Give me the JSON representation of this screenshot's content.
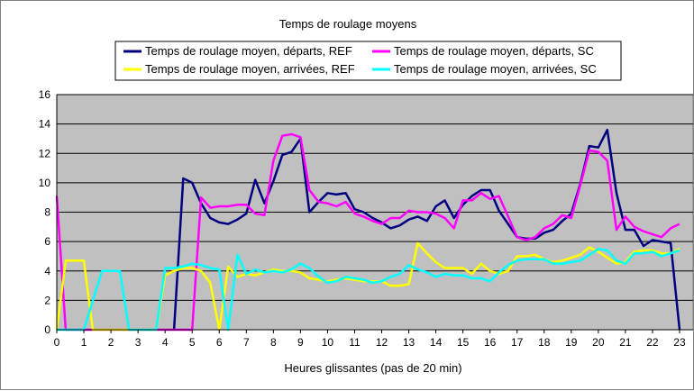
{
  "chart_data": {
    "type": "line",
    "title": "Temps de roulage moyens",
    "xlabel": "Heures glissantes (pas de 20 min)",
    "ylabel": "",
    "xlim": [
      0,
      23.5
    ],
    "ylim": [
      0,
      16
    ],
    "x_ticks": [
      0,
      1,
      2,
      3,
      4,
      5,
      6,
      7,
      8,
      9,
      10,
      11,
      12,
      13,
      14,
      15,
      16,
      17,
      18,
      19,
      20,
      21,
      22,
      23
    ],
    "y_ticks": [
      0,
      2,
      4,
      6,
      8,
      10,
      12,
      14,
      16
    ],
    "grid": "horizontal",
    "legend_position": "top",
    "plot_background": "#c0c0c0",
    "series": [
      {
        "name": "Temps de roulage moyen, départs, REF",
        "color": "#000080",
        "points": [
          [
            4.33,
            0
          ],
          [
            4.67,
            10.3
          ],
          [
            5.0,
            10.0
          ],
          [
            5.33,
            8.6
          ],
          [
            5.67,
            7.6
          ],
          [
            6.0,
            7.3
          ],
          [
            6.33,
            7.2
          ],
          [
            6.67,
            7.5
          ],
          [
            7.0,
            7.9
          ],
          [
            7.33,
            10.2
          ],
          [
            7.67,
            8.6
          ],
          [
            8.0,
            10.1
          ],
          [
            8.33,
            11.9
          ],
          [
            8.67,
            12.1
          ],
          [
            9.0,
            13.0
          ],
          [
            9.33,
            8.0
          ],
          [
            9.67,
            8.7
          ],
          [
            10.0,
            9.3
          ],
          [
            10.33,
            9.2
          ],
          [
            10.67,
            9.3
          ],
          [
            11.0,
            8.2
          ],
          [
            11.33,
            8.0
          ],
          [
            11.67,
            7.6
          ],
          [
            12.0,
            7.3
          ],
          [
            12.33,
            6.9
          ],
          [
            12.67,
            7.1
          ],
          [
            13.0,
            7.5
          ],
          [
            13.33,
            7.7
          ],
          [
            13.67,
            7.4
          ],
          [
            14.0,
            8.4
          ],
          [
            14.33,
            8.8
          ],
          [
            14.67,
            7.6
          ],
          [
            15.0,
            8.5
          ],
          [
            15.33,
            9.1
          ],
          [
            15.67,
            9.5
          ],
          [
            16.0,
            9.5
          ],
          [
            16.33,
            8.1
          ],
          [
            16.67,
            7.2
          ],
          [
            17.0,
            6.3
          ],
          [
            17.33,
            6.2
          ],
          [
            17.67,
            6.2
          ],
          [
            18.0,
            6.6
          ],
          [
            18.33,
            6.8
          ],
          [
            18.67,
            7.4
          ],
          [
            19.0,
            7.9
          ],
          [
            19.33,
            9.9
          ],
          [
            19.67,
            12.5
          ],
          [
            20.0,
            12.4
          ],
          [
            20.33,
            13.6
          ],
          [
            20.67,
            9.3
          ],
          [
            21.0,
            6.8
          ],
          [
            21.33,
            6.8
          ],
          [
            21.67,
            5.7
          ],
          [
            22.0,
            6.1
          ],
          [
            22.33,
            6.0
          ],
          [
            22.67,
            5.9
          ],
          [
            23.0,
            0
          ]
        ]
      },
      {
        "name": "Temps de roulage moyen, départs, SC",
        "color": "#ff00ff",
        "points": [
          [
            0.0,
            9.1
          ],
          [
            0.33,
            0
          ],
          [
            1.0,
            0
          ],
          [
            2.0,
            0
          ],
          [
            3.0,
            0
          ],
          [
            4.0,
            0
          ],
          [
            5.0,
            0
          ],
          [
            5.33,
            9.0
          ],
          [
            5.67,
            8.3
          ],
          [
            6.0,
            8.4
          ],
          [
            6.33,
            8.4
          ],
          [
            6.67,
            8.5
          ],
          [
            7.0,
            8.5
          ],
          [
            7.33,
            7.9
          ],
          [
            7.67,
            7.8
          ],
          [
            8.0,
            11.5
          ],
          [
            8.33,
            13.2
          ],
          [
            8.67,
            13.3
          ],
          [
            9.0,
            13.1
          ],
          [
            9.33,
            9.5
          ],
          [
            9.67,
            8.7
          ],
          [
            10.0,
            8.6
          ],
          [
            10.33,
            8.4
          ],
          [
            10.67,
            8.7
          ],
          [
            11.0,
            7.9
          ],
          [
            11.33,
            7.7
          ],
          [
            11.67,
            7.4
          ],
          [
            12.0,
            7.2
          ],
          [
            12.33,
            7.6
          ],
          [
            12.67,
            7.6
          ],
          [
            13.0,
            8.1
          ],
          [
            13.33,
            8.0
          ],
          [
            13.67,
            8.0
          ],
          [
            14.0,
            7.9
          ],
          [
            14.33,
            7.6
          ],
          [
            14.67,
            6.9
          ],
          [
            15.0,
            8.8
          ],
          [
            15.33,
            8.8
          ],
          [
            15.67,
            9.3
          ],
          [
            16.0,
            8.9
          ],
          [
            16.33,
            9.1
          ],
          [
            16.67,
            7.7
          ],
          [
            17.0,
            6.3
          ],
          [
            17.33,
            6.1
          ],
          [
            17.67,
            6.3
          ],
          [
            18.0,
            6.9
          ],
          [
            18.33,
            7.2
          ],
          [
            18.67,
            7.8
          ],
          [
            19.0,
            7.6
          ],
          [
            19.33,
            9.8
          ],
          [
            19.67,
            12.2
          ],
          [
            20.0,
            12.1
          ],
          [
            20.33,
            11.5
          ],
          [
            20.67,
            6.8
          ],
          [
            21.0,
            7.7
          ],
          [
            21.33,
            7.0
          ],
          [
            21.67,
            6.7
          ],
          [
            22.0,
            6.5
          ],
          [
            22.33,
            6.3
          ],
          [
            22.67,
            6.9
          ],
          [
            23.0,
            7.2
          ]
        ]
      },
      {
        "name": "Temps de roulage moyen, arrivées, REF",
        "color": "#ffff00",
        "points": [
          [
            0.0,
            0
          ],
          [
            0.33,
            4.7
          ],
          [
            0.67,
            4.7
          ],
          [
            1.0,
            4.7
          ],
          [
            1.33,
            0
          ],
          [
            2.0,
            0
          ],
          [
            3.0,
            0
          ],
          [
            3.67,
            0
          ],
          [
            4.0,
            3.7
          ],
          [
            4.33,
            4.0
          ],
          [
            4.67,
            4.2
          ],
          [
            5.0,
            4.2
          ],
          [
            5.33,
            4.0
          ],
          [
            5.67,
            3.2
          ],
          [
            6.0,
            0
          ],
          [
            6.33,
            4.3
          ],
          [
            6.67,
            3.6
          ],
          [
            7.0,
            3.8
          ],
          [
            7.33,
            3.7
          ],
          [
            7.67,
            3.9
          ],
          [
            8.0,
            4.1
          ],
          [
            8.33,
            4.0
          ],
          [
            8.67,
            4.0
          ],
          [
            9.0,
            3.9
          ],
          [
            9.33,
            3.5
          ],
          [
            9.67,
            3.4
          ],
          [
            10.0,
            3.3
          ],
          [
            10.33,
            3.4
          ],
          [
            10.67,
            3.5
          ],
          [
            11.0,
            3.4
          ],
          [
            11.33,
            3.3
          ],
          [
            11.67,
            3.3
          ],
          [
            12.0,
            3.3
          ],
          [
            12.33,
            3.0
          ],
          [
            12.67,
            3.0
          ],
          [
            13.0,
            3.1
          ],
          [
            13.33,
            5.9
          ],
          [
            13.67,
            5.2
          ],
          [
            14.0,
            4.6
          ],
          [
            14.33,
            4.2
          ],
          [
            14.67,
            4.2
          ],
          [
            15.0,
            4.2
          ],
          [
            15.33,
            3.8
          ],
          [
            15.67,
            4.5
          ],
          [
            16.0,
            4.0
          ],
          [
            16.33,
            3.8
          ],
          [
            16.67,
            4.0
          ],
          [
            17.0,
            5.0
          ],
          [
            17.33,
            5.0
          ],
          [
            17.67,
            5.1
          ],
          [
            18.0,
            4.8
          ],
          [
            18.33,
            4.6
          ],
          [
            18.67,
            4.7
          ],
          [
            19.0,
            4.9
          ],
          [
            19.33,
            5.1
          ],
          [
            19.67,
            5.6
          ],
          [
            20.0,
            5.3
          ],
          [
            20.33,
            4.9
          ],
          [
            20.67,
            4.5
          ],
          [
            21.0,
            4.6
          ],
          [
            21.33,
            5.3
          ],
          [
            21.67,
            5.4
          ],
          [
            22.0,
            5.4
          ],
          [
            22.33,
            5.2
          ],
          [
            22.67,
            5.2
          ],
          [
            23.0,
            5.5
          ]
        ]
      },
      {
        "name": "Temps de roulage moyen, arrivées, SC",
        "color": "#00ffff",
        "points": [
          [
            0.0,
            0
          ],
          [
            1.0,
            0
          ],
          [
            1.67,
            4.0
          ],
          [
            2.33,
            4.0
          ],
          [
            2.67,
            0
          ],
          [
            3.67,
            0
          ],
          [
            4.0,
            4.2
          ],
          [
            4.33,
            4.2
          ],
          [
            4.67,
            4.3
          ],
          [
            5.0,
            4.5
          ],
          [
            5.33,
            4.4
          ],
          [
            5.67,
            4.2
          ],
          [
            6.0,
            4.1
          ],
          [
            6.33,
            0
          ],
          [
            6.67,
            5.1
          ],
          [
            7.0,
            3.8
          ],
          [
            7.33,
            4.1
          ],
          [
            7.67,
            3.9
          ],
          [
            8.0,
            4.0
          ],
          [
            8.33,
            3.9
          ],
          [
            8.67,
            4.1
          ],
          [
            9.0,
            4.5
          ],
          [
            9.33,
            4.2
          ],
          [
            9.67,
            3.6
          ],
          [
            10.0,
            3.2
          ],
          [
            10.33,
            3.3
          ],
          [
            10.67,
            3.6
          ],
          [
            11.0,
            3.5
          ],
          [
            11.33,
            3.4
          ],
          [
            11.67,
            3.2
          ],
          [
            12.0,
            3.3
          ],
          [
            12.33,
            3.6
          ],
          [
            12.67,
            3.8
          ],
          [
            13.0,
            4.4
          ],
          [
            13.33,
            4.1
          ],
          [
            13.67,
            3.9
          ],
          [
            14.0,
            3.6
          ],
          [
            14.33,
            3.8
          ],
          [
            14.67,
            3.7
          ],
          [
            15.0,
            3.7
          ],
          [
            15.33,
            3.5
          ],
          [
            15.67,
            3.5
          ],
          [
            16.0,
            3.3
          ],
          [
            16.33,
            3.9
          ],
          [
            16.67,
            4.4
          ],
          [
            17.0,
            4.7
          ],
          [
            17.33,
            4.8
          ],
          [
            17.67,
            4.8
          ],
          [
            18.0,
            4.8
          ],
          [
            18.33,
            4.5
          ],
          [
            18.67,
            4.5
          ],
          [
            19.0,
            4.6
          ],
          [
            19.33,
            4.7
          ],
          [
            19.67,
            5.1
          ],
          [
            20.0,
            5.5
          ],
          [
            20.33,
            5.4
          ],
          [
            20.67,
            4.7
          ],
          [
            21.0,
            4.5
          ],
          [
            21.33,
            5.2
          ],
          [
            21.67,
            5.2
          ],
          [
            22.0,
            5.3
          ],
          [
            22.33,
            5.0
          ],
          [
            22.67,
            5.2
          ],
          [
            23.0,
            5.4
          ]
        ]
      }
    ]
  }
}
